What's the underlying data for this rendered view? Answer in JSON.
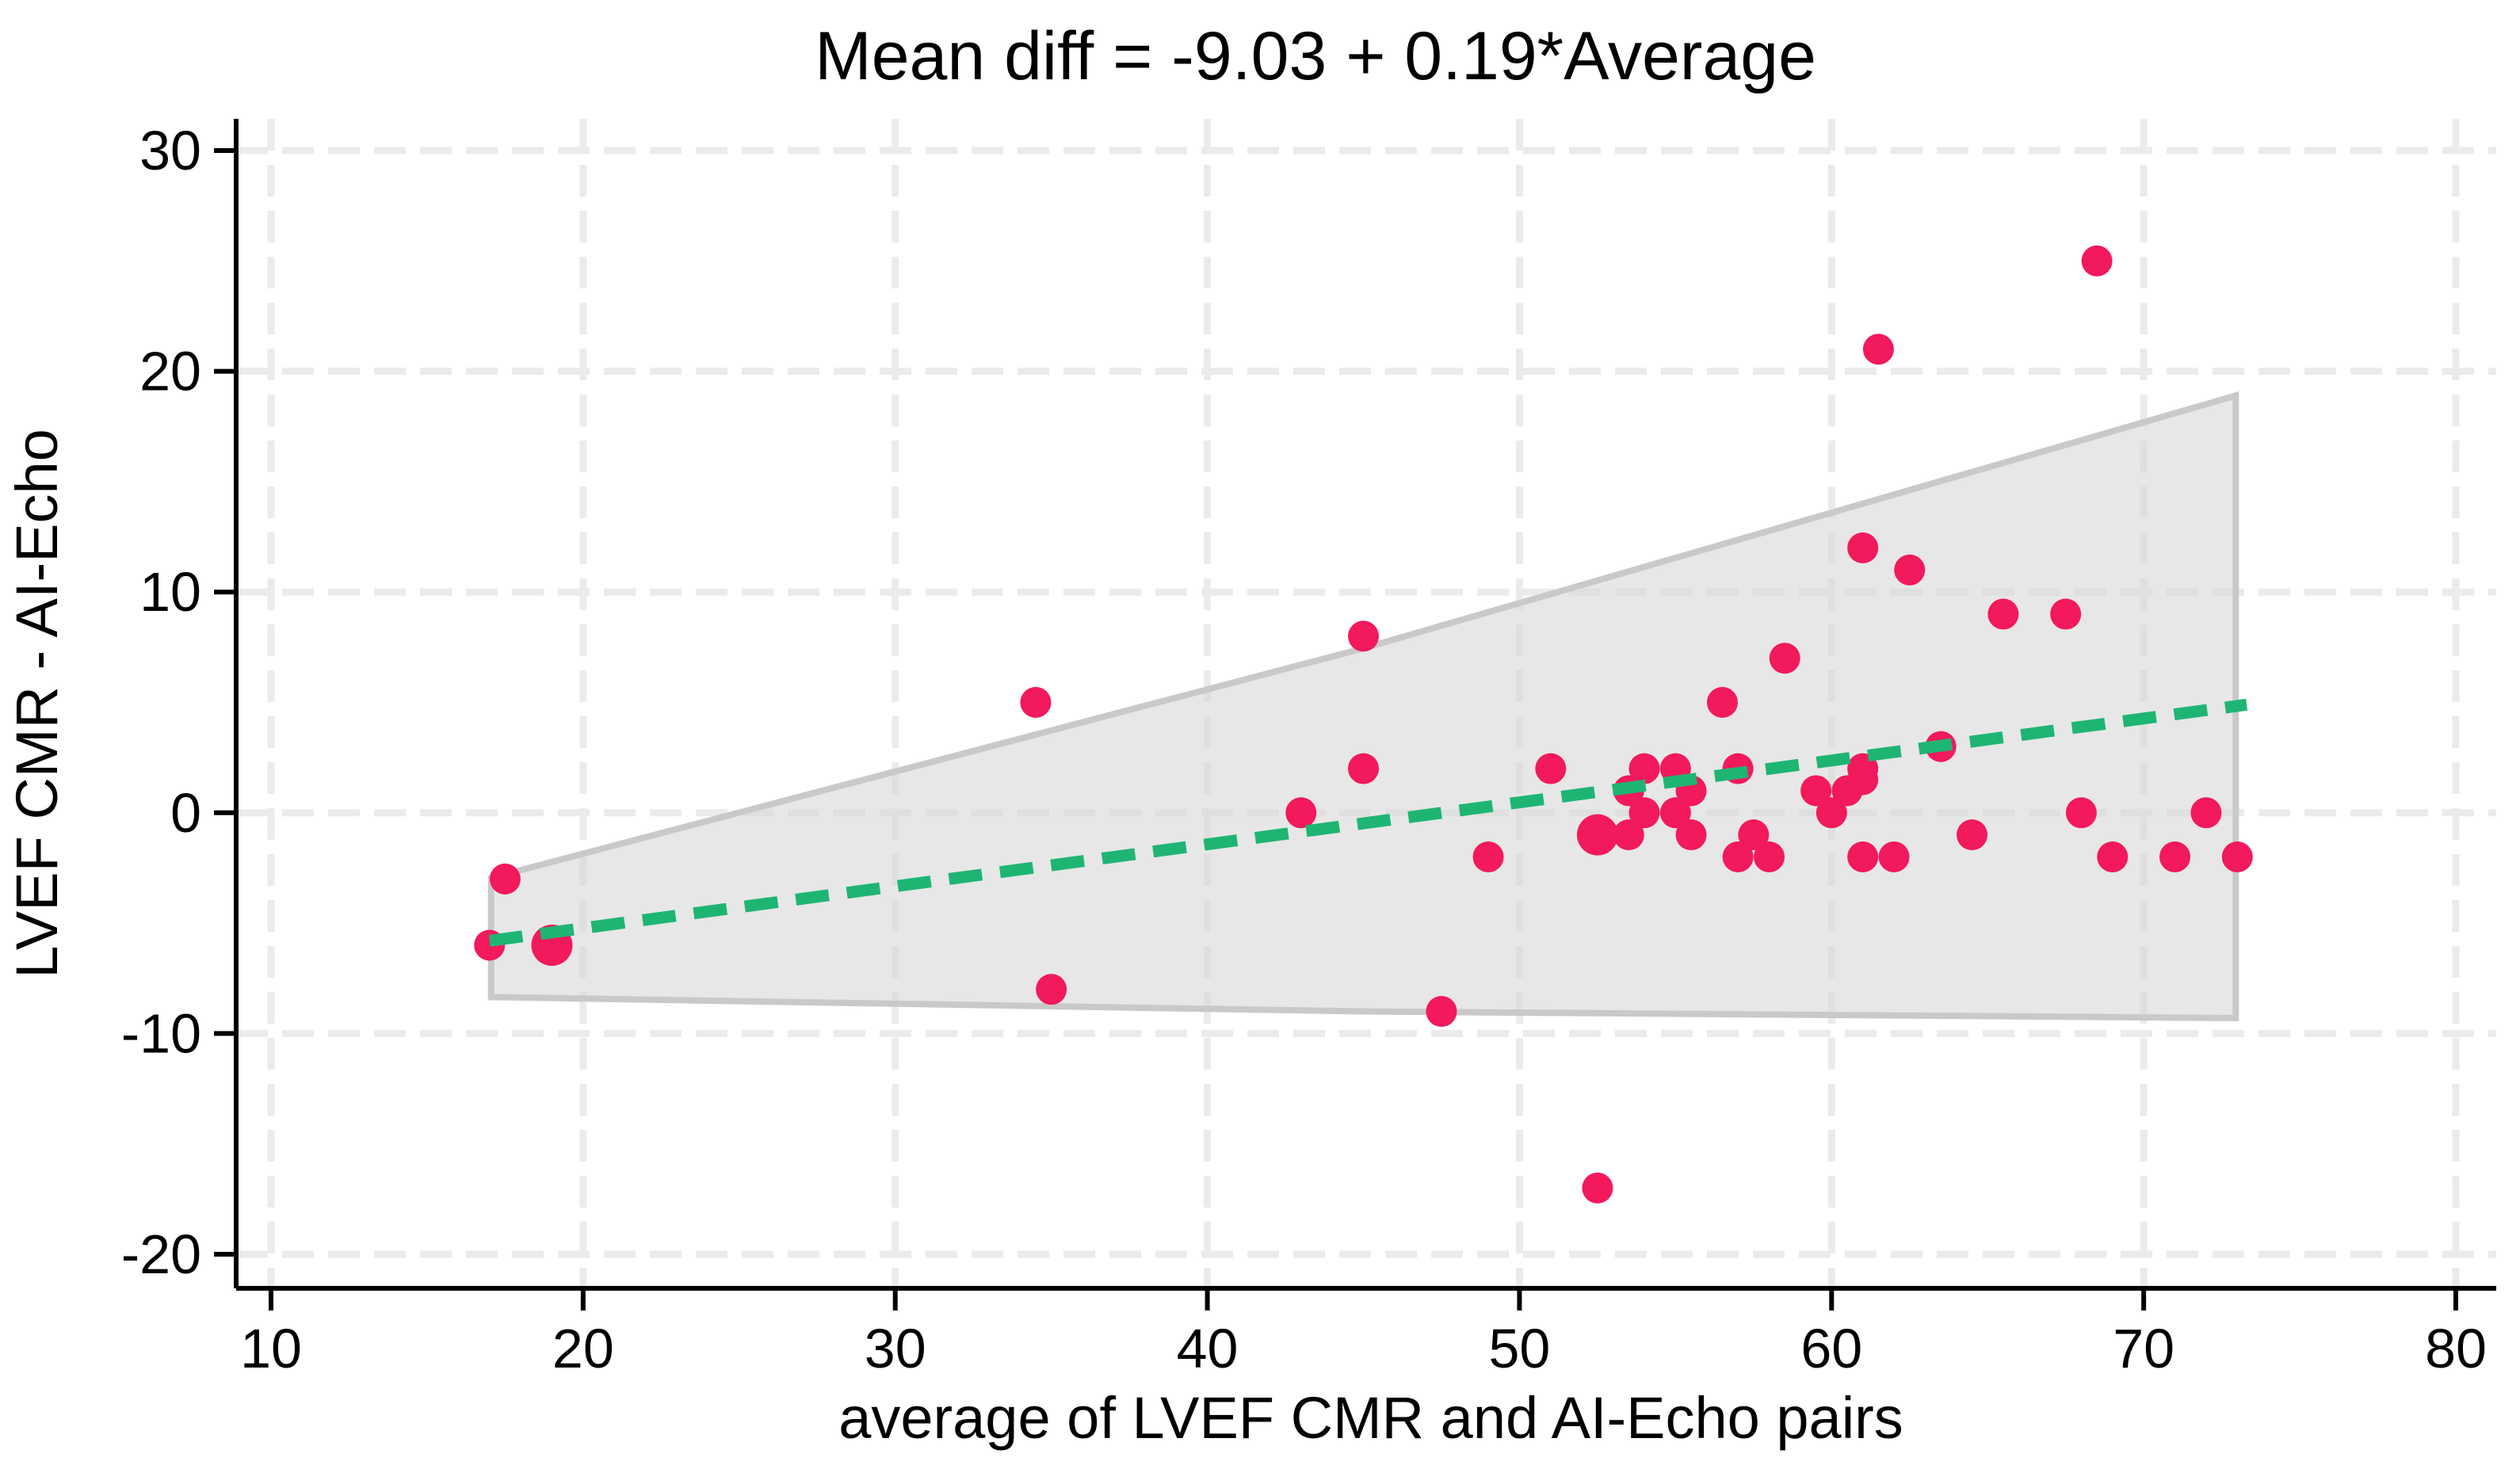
{
  "chart_data": {
    "type": "scatter",
    "title": "Mean diff = -9.03 + 0.19*Average",
    "xlabel": "average of LVEF CMR and AI-Echo pairs",
    "ylabel": "LVEF CMR - AI-Echo",
    "x_ticks": [
      10,
      20,
      30,
      40,
      50,
      60,
      70,
      80
    ],
    "y_ticks": [
      -20,
      -10,
      0,
      10,
      20,
      30
    ],
    "xlim": [
      10,
      80
    ],
    "ylim": [
      -20,
      30
    ],
    "grid": true,
    "legend_position": "none",
    "points": [
      [
        17.5,
        -3
      ],
      [
        17,
        -6
      ],
      [
        34.5,
        5
      ],
      [
        35,
        -8
      ],
      [
        43,
        0
      ],
      [
        45,
        8
      ],
      [
        45,
        2
      ],
      [
        47.5,
        -9
      ],
      [
        49,
        -2
      ],
      [
        51,
        2
      ],
      [
        52.5,
        -17
      ],
      [
        53.5,
        -1
      ],
      [
        53.5,
        1
      ],
      [
        54,
        0
      ],
      [
        54,
        2
      ],
      [
        55,
        0
      ],
      [
        55,
        2
      ],
      [
        55.5,
        1
      ],
      [
        55.5,
        -1
      ],
      [
        56.5,
        5
      ],
      [
        57,
        2
      ],
      [
        57,
        -2
      ],
      [
        57.5,
        -1
      ],
      [
        58,
        -2
      ],
      [
        58.5,
        7
      ],
      [
        59.5,
        1
      ],
      [
        60,
        0
      ],
      [
        60.5,
        1
      ],
      [
        61,
        2
      ],
      [
        61,
        1.5
      ],
      [
        61,
        12
      ],
      [
        61,
        -2
      ],
      [
        61.5,
        21
      ],
      [
        62,
        -2
      ],
      [
        62.5,
        11
      ],
      [
        63.5,
        3
      ],
      [
        64.5,
        -1
      ],
      [
        65.5,
        9
      ],
      [
        67.5,
        9
      ],
      [
        68,
        0
      ],
      [
        68.5,
        25
      ],
      [
        69,
        -2
      ],
      [
        71,
        -2
      ],
      [
        72,
        0
      ],
      [
        73,
        -2
      ]
    ],
    "large_points": [
      [
        19,
        -6
      ],
      [
        52.5,
        -1
      ]
    ],
    "regression": {
      "equation": "Mean diff = -9.03 + 0.19*Average",
      "intercept": -9.03,
      "slope": 0.19,
      "x_start": 17,
      "x_end": 73.3,
      "style": "dashed"
    },
    "confidence_band": [
      [
        17.05,
        -2.95
      ],
      [
        45,
        7.45
      ],
      [
        72.95,
        18.9
      ],
      [
        72.95,
        -9.3
      ],
      [
        45,
        -9.0
      ],
      [
        17.05,
        -8.35
      ]
    ],
    "colors": {
      "point": "#f2195d",
      "line": "#1eb573",
      "band": "#d9d9d9",
      "band_edge": "#c9c9c9",
      "grid": "#ebebeb",
      "axis": "#000000"
    }
  }
}
